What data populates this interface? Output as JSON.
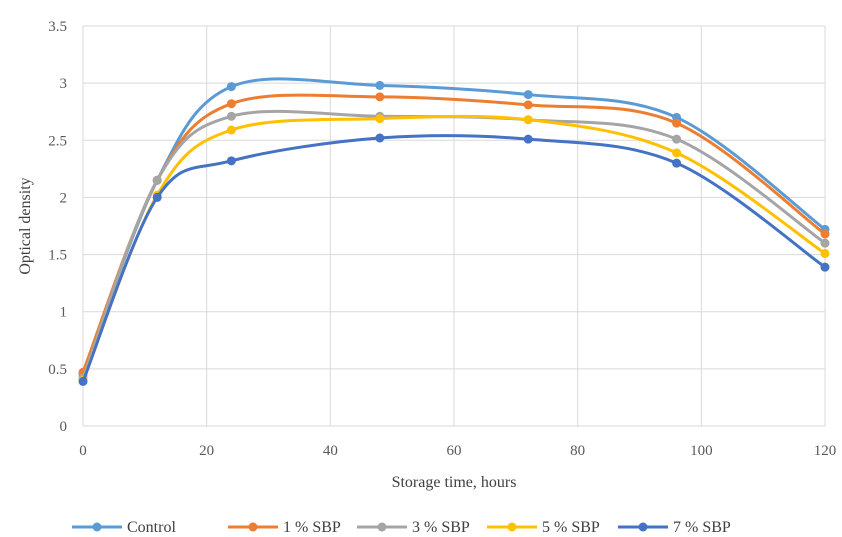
{
  "chart_data": {
    "type": "line",
    "title": "",
    "xlabel": "Storage time, hours",
    "ylabel": "Optical density",
    "xlim": [
      0,
      120
    ],
    "ylim": [
      0,
      3.5
    ],
    "xticks": [
      0,
      20,
      40,
      60,
      80,
      100,
      120
    ],
    "yticks": [
      0,
      0.5,
      1,
      1.5,
      2,
      2.5,
      3,
      3.5
    ],
    "ytick_labels": [
      "0",
      "0.5",
      "1",
      "1.5",
      "2",
      "2.5",
      "3",
      "3.5"
    ],
    "grid": true,
    "legend_position": "bottom",
    "smoothed": true,
    "x": [
      0,
      12,
      24,
      48,
      72,
      96,
      120
    ],
    "series": [
      {
        "name": "Control",
        "color": "#5b9bd5",
        "values": [
          0.45,
          2.15,
          2.97,
          2.98,
          2.9,
          2.7,
          1.72
        ]
      },
      {
        "name": "1 % SBP",
        "color": "#ed7d31",
        "values": [
          0.47,
          2.15,
          2.82,
          2.88,
          2.81,
          2.65,
          1.68
        ]
      },
      {
        "name": "3 % SBP",
        "color": "#a5a5a5",
        "values": [
          0.42,
          2.15,
          2.71,
          2.71,
          2.68,
          2.51,
          1.6
        ]
      },
      {
        "name": "5 % SBP",
        "color": "#ffc000",
        "values": [
          0.4,
          2.02,
          2.59,
          2.69,
          2.68,
          2.39,
          1.51
        ]
      },
      {
        "name": "7 % SBP",
        "color": "#4472c4",
        "values": [
          0.39,
          2.0,
          2.32,
          2.52,
          2.51,
          2.3,
          1.39
        ]
      }
    ]
  }
}
